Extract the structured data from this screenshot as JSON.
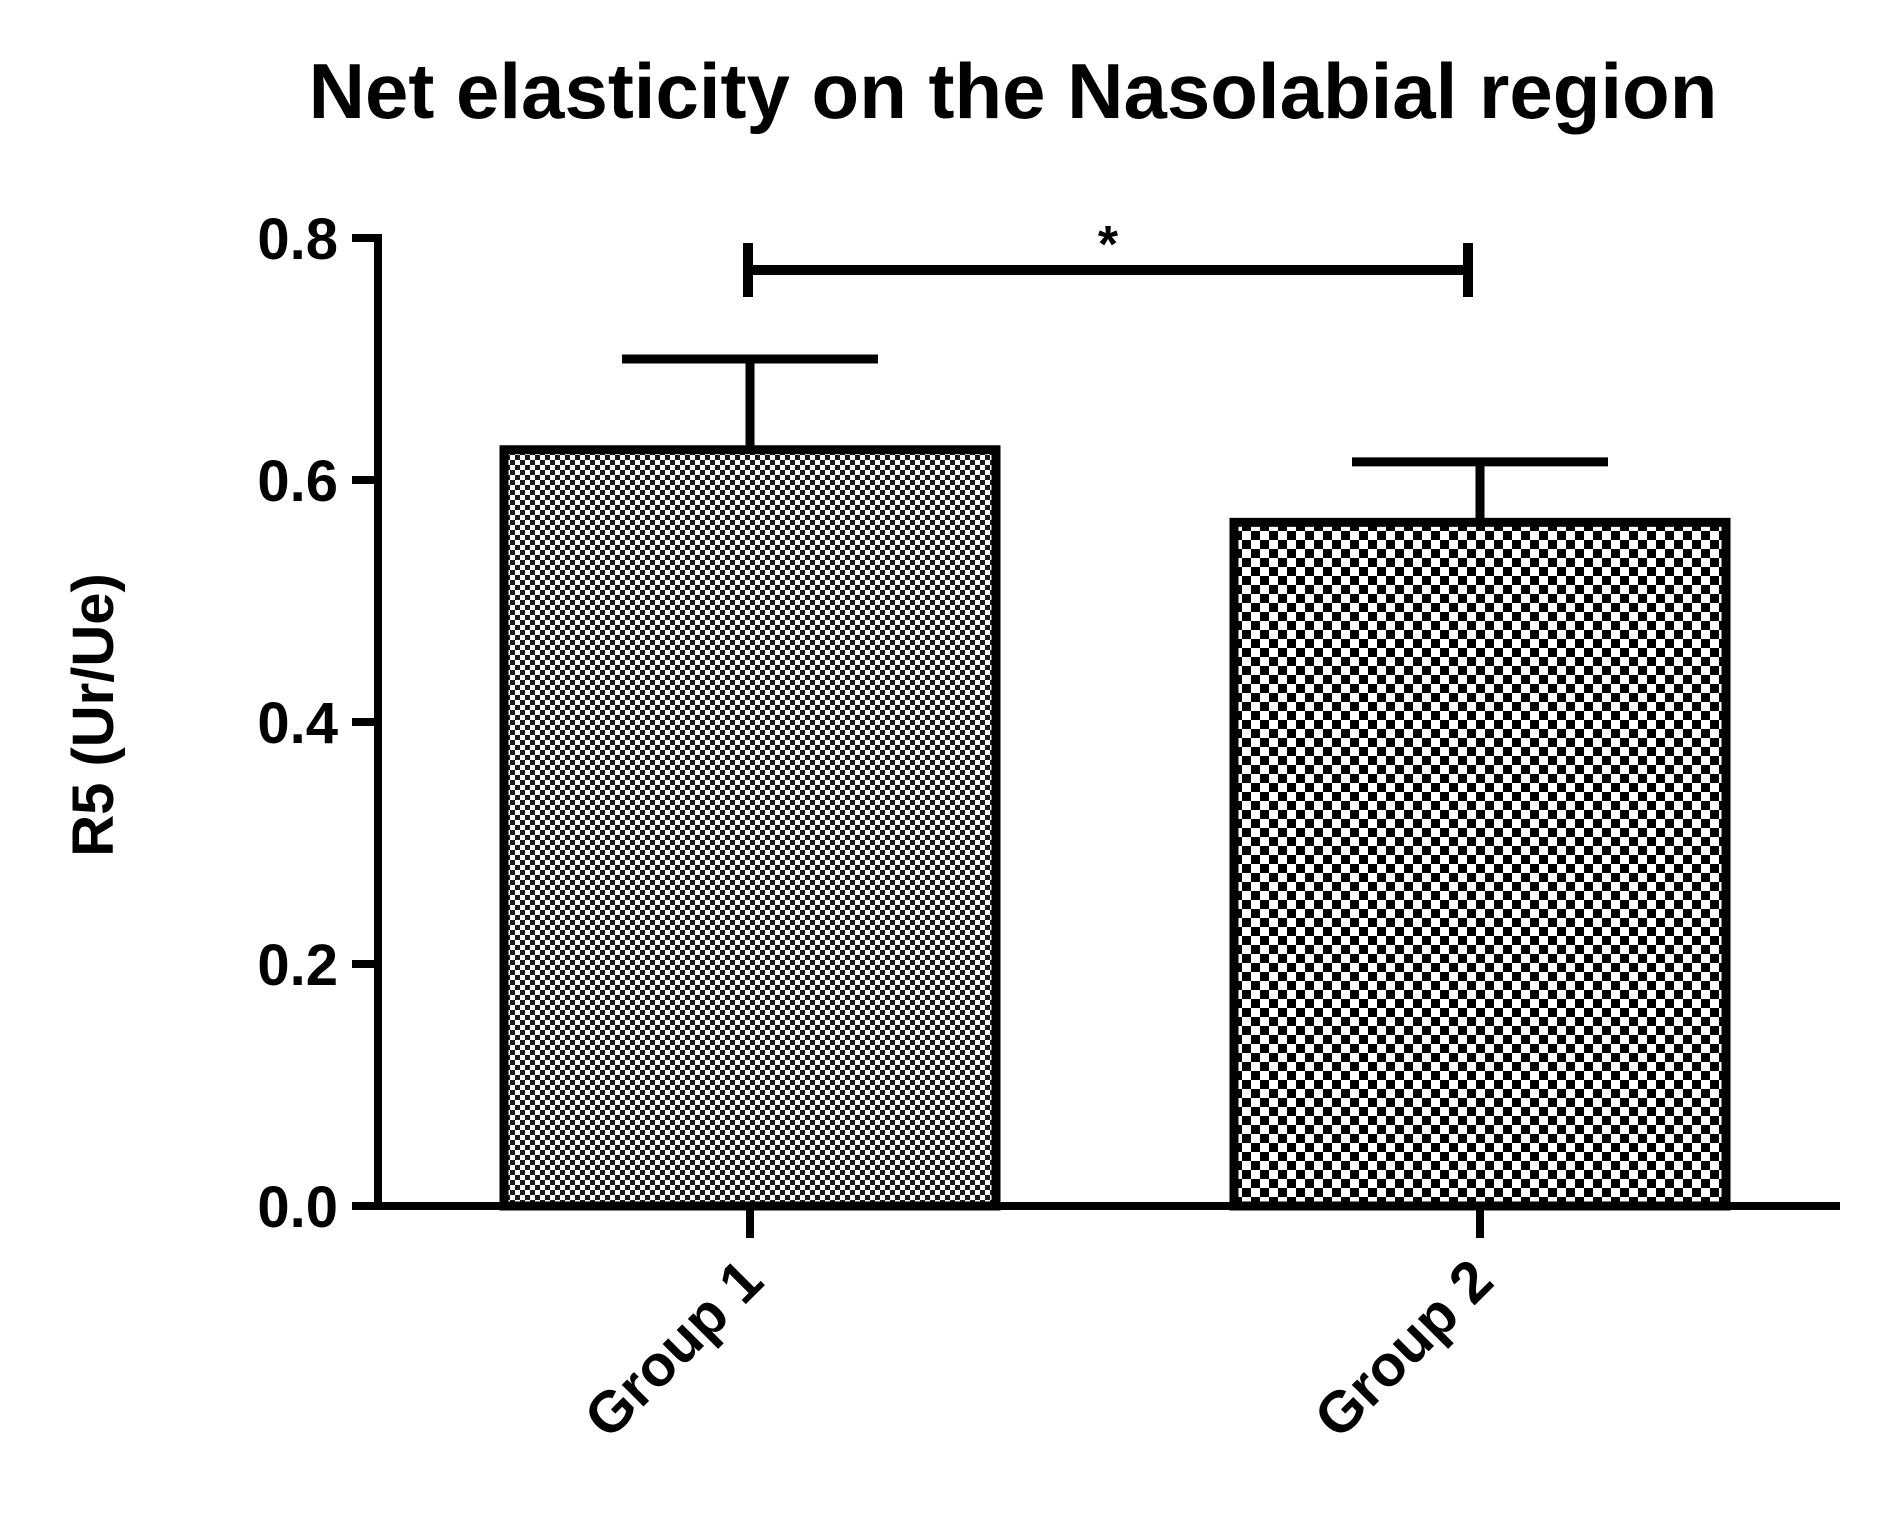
{
  "chart_data": {
    "type": "bar",
    "title": "Net elasticity on the Nasolabial region",
    "xlabel": "",
    "ylabel": "R5 (Ur/Ue)",
    "ylim": [
      0,
      0.8
    ],
    "yticks": [
      "0.0",
      "0.2",
      "0.4",
      "0.6",
      "0.8"
    ],
    "categories": [
      "Group 1",
      "Group 2"
    ],
    "values": [
      0.625,
      0.565
    ],
    "error_upper": [
      0.7,
      0.615
    ],
    "significance": {
      "from": "Group 1",
      "to": "Group 2",
      "label": "*"
    },
    "bar_patterns": [
      "fine-checker",
      "coarse-checker"
    ],
    "grid": false,
    "legend": "none"
  }
}
